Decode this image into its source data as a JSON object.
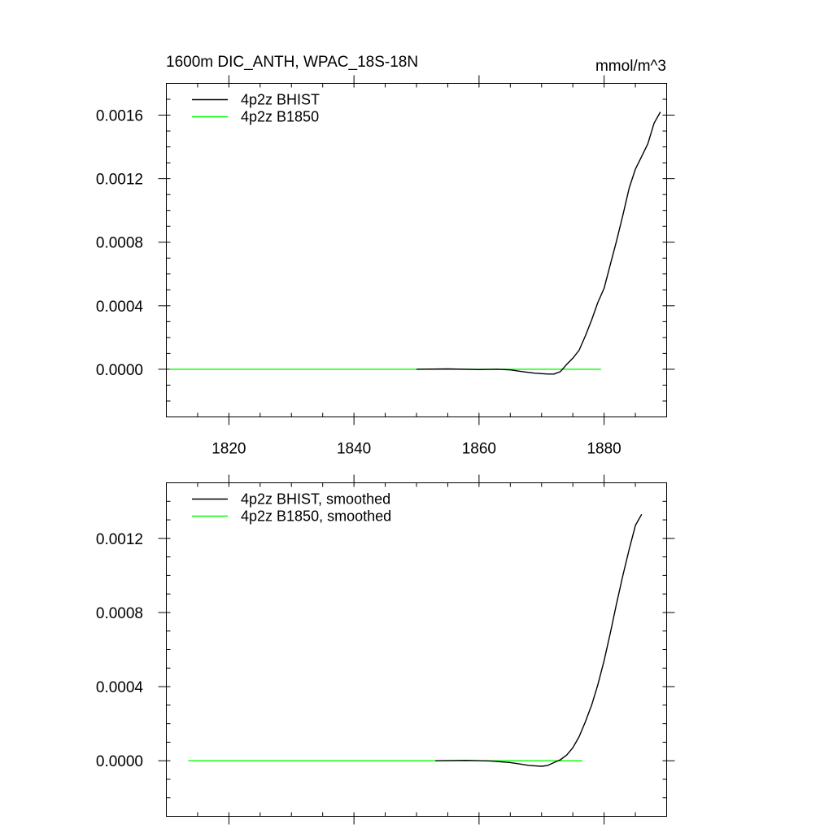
{
  "chart_data": [
    {
      "type": "line",
      "title": "1600m DIC_ANTH, WPAC_18S-18N",
      "units": "mmol/m^3",
      "xlim": [
        1810,
        1890
      ],
      "ylim": [
        -0.0003,
        0.0018
      ],
      "x_ticks": [
        1820,
        1840,
        1860,
        1880
      ],
      "x_tick_labels": [
        "1820",
        "1840",
        "1860",
        "1880"
      ],
      "y_ticks": [
        0.0,
        0.0004,
        0.0008,
        0.0012,
        0.0016
      ],
      "y_tick_labels": [
        "0.0000",
        "0.0004",
        "0.0008",
        "0.0012",
        "0.0016"
      ],
      "legend_position": "top-left",
      "series": [
        {
          "name": "4p2z BHIST",
          "color": "#000000",
          "x": [
            1850,
            1855,
            1860,
            1863,
            1865,
            1867,
            1869,
            1871,
            1872,
            1873,
            1874,
            1875,
            1876,
            1877,
            1878,
            1879,
            1880,
            1881,
            1882,
            1883,
            1884,
            1885,
            1886,
            1887,
            1888,
            1889
          ],
          "y": [
            0.0,
            2e-06,
            -2e-06,
            0.0,
            -4e-06,
            -1.5e-05,
            -2.5e-05,
            -3e-05,
            -3e-05,
            -1.5e-05,
            3e-05,
            7e-05,
            0.00012,
            0.00021,
            0.00031,
            0.00042,
            0.00051,
            0.00066,
            0.00081,
            0.00097,
            0.00114,
            0.00126,
            0.00134,
            0.00142,
            0.00155,
            0.00162
          ]
        },
        {
          "name": "4p2z B1850",
          "color": "#00ff00",
          "x": [
            1810.5,
            1879.5
          ],
          "y": [
            0.0,
            0.0
          ]
        }
      ]
    },
    {
      "type": "line",
      "xlim": [
        1810,
        1890
      ],
      "ylim": [
        -0.0003,
        0.0015
      ],
      "x_ticks": [
        1820,
        1840,
        1860,
        1880
      ],
      "y_ticks": [
        0.0,
        0.0004,
        0.0008,
        0.0012
      ],
      "y_tick_labels": [
        "0.0000",
        "0.0004",
        "0.0008",
        "0.0012"
      ],
      "legend_position": "top-left",
      "series": [
        {
          "name": "4p2z BHIST, smoothed",
          "color": "#000000",
          "x": [
            1853,
            1858,
            1862,
            1865,
            1868,
            1870,
            1871,
            1872,
            1873,
            1874,
            1875,
            1876,
            1877,
            1878,
            1879,
            1880,
            1881,
            1882,
            1883,
            1884,
            1885,
            1886
          ],
          "y": [
            0.0,
            2e-06,
            -2e-06,
            -1e-05,
            -2.5e-05,
            -3e-05,
            -2.5e-05,
            -1e-05,
            5e-06,
            3e-05,
            7e-05,
            0.00013,
            0.00021,
            0.0003,
            0.00041,
            0.00054,
            0.00069,
            0.00085,
            0.001,
            0.00114,
            0.00127,
            0.00133
          ]
        },
        {
          "name": "4p2z B1850, smoothed",
          "color": "#00ff00",
          "x": [
            1813.5,
            1876.5
          ],
          "y": [
            0.0,
            0.0
          ]
        }
      ]
    }
  ]
}
